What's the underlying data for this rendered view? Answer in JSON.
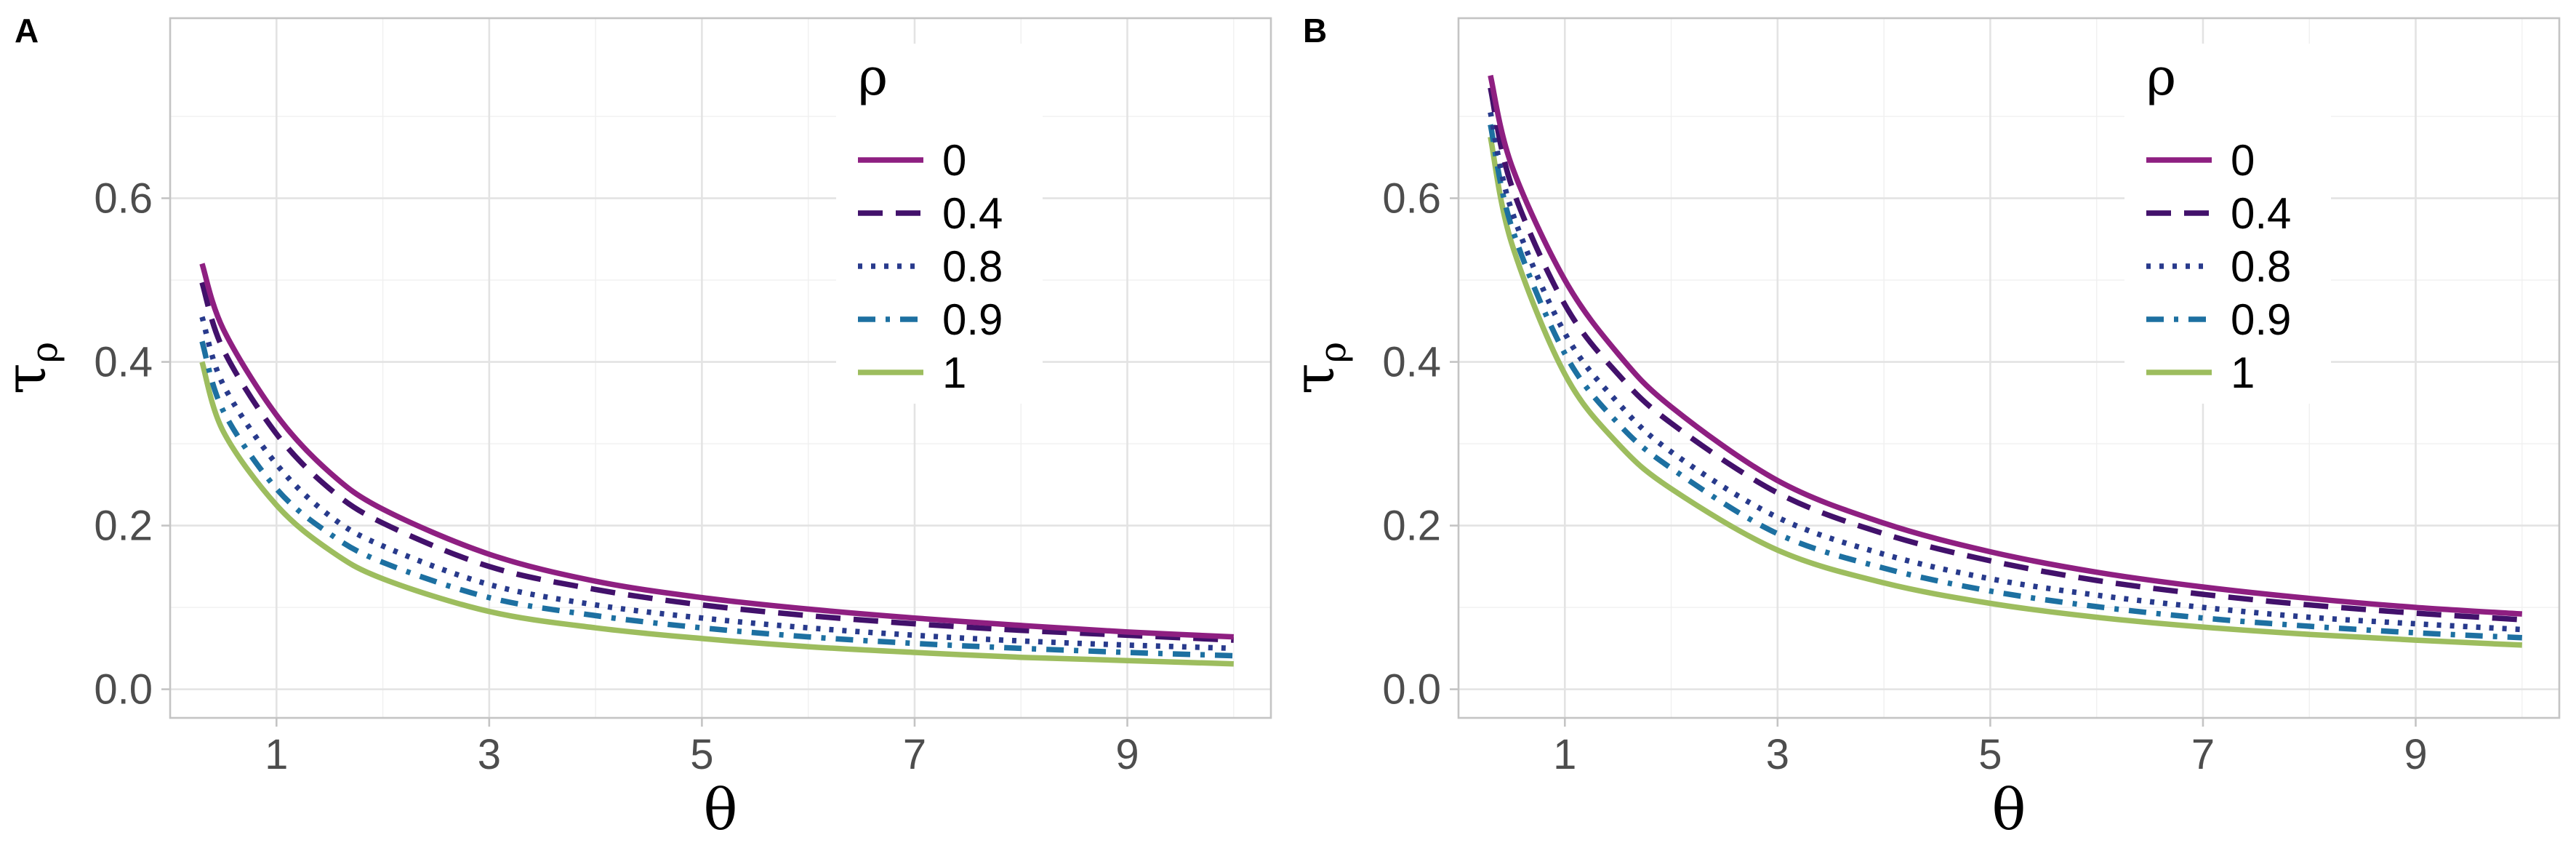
{
  "chart_data": [
    {
      "panel": "A",
      "type": "line",
      "xlabel": "θ",
      "ylabel": "τ",
      "ylabel_subscript": "ρ",
      "xlim": [
        0.0,
        10.35
      ],
      "ylim": [
        -0.035,
        0.82
      ],
      "x_ticks": [
        1,
        3,
        5,
        7,
        9
      ],
      "y_ticks": [
        0.0,
        0.2,
        0.4,
        0.6
      ],
      "x_tick_labels": [
        "1",
        "3",
        "5",
        "7",
        "9"
      ],
      "y_tick_labels": [
        "0.0",
        "0.2",
        "0.4",
        "0.6"
      ],
      "legend": {
        "title": "ρ",
        "position": "top-right-inside"
      },
      "series": [
        {
          "name": "0",
          "color": "#8e1f81",
          "dash": "solid",
          "x": [
            0.3,
            0.5,
            1,
            1.5,
            2,
            3,
            4,
            5,
            6,
            7,
            8,
            9,
            10
          ],
          "y": [
            0.52,
            0.44,
            0.335,
            0.265,
            0.22,
            0.165,
            0.132,
            0.112,
            0.098,
            0.087,
            0.078,
            0.07,
            0.064
          ]
        },
        {
          "name": "0.4",
          "color": "#42116b",
          "dash": "dashed",
          "x": [
            0.3,
            0.5,
            1,
            1.5,
            2,
            3,
            4,
            5,
            6,
            7,
            8,
            9,
            10
          ],
          "y": [
            0.497,
            0.415,
            0.312,
            0.245,
            0.203,
            0.15,
            0.122,
            0.103,
            0.09,
            0.08,
            0.072,
            0.066,
            0.06
          ]
        },
        {
          "name": "0.8",
          "color": "#283a8c",
          "dash": "dotted",
          "x": [
            0.3,
            0.5,
            1,
            1.5,
            2,
            3,
            4,
            5,
            6,
            7,
            8,
            9,
            10
          ],
          "y": [
            0.455,
            0.372,
            0.275,
            0.212,
            0.175,
            0.128,
            0.103,
            0.087,
            0.075,
            0.066,
            0.059,
            0.054,
            0.05
          ]
        },
        {
          "name": "0.9",
          "color": "#1d70a1",
          "dash": "dotdash",
          "x": [
            0.3,
            0.5,
            1,
            1.5,
            2,
            3,
            4,
            5,
            6,
            7,
            8,
            9,
            10
          ],
          "y": [
            0.425,
            0.34,
            0.245,
            0.19,
            0.155,
            0.112,
            0.09,
            0.075,
            0.064,
            0.056,
            0.05,
            0.045,
            0.041
          ]
        },
        {
          "name": "1",
          "color": "#9dbd5e",
          "dash": "solid",
          "x": [
            0.3,
            0.5,
            1,
            1.5,
            2,
            3,
            4,
            5,
            6,
            7,
            8,
            9,
            10
          ],
          "y": [
            0.4,
            0.315,
            0.225,
            0.17,
            0.135,
            0.095,
            0.075,
            0.062,
            0.052,
            0.045,
            0.039,
            0.035,
            0.031
          ]
        }
      ]
    },
    {
      "panel": "B",
      "type": "line",
      "xlabel": "θ",
      "ylabel": "τ",
      "ylabel_subscript": "ρ",
      "xlim": [
        0.0,
        10.35
      ],
      "ylim": [
        -0.035,
        0.82
      ],
      "x_ticks": [
        1,
        3,
        5,
        7,
        9
      ],
      "y_ticks": [
        0.0,
        0.2,
        0.4,
        0.6
      ],
      "x_tick_labels": [
        "1",
        "3",
        "5",
        "7",
        "9"
      ],
      "y_tick_labels": [
        "0.0",
        "0.2",
        "0.4",
        "0.6"
      ],
      "legend": {
        "title": "ρ",
        "position": "top-right-inside"
      },
      "series": [
        {
          "name": "0",
          "color": "#8e1f81",
          "dash": "solid",
          "x": [
            0.3,
            0.5,
            1,
            1.5,
            2,
            3,
            4,
            5,
            6,
            7,
            8,
            9,
            10
          ],
          "y": [
            0.75,
            0.64,
            0.5,
            0.41,
            0.345,
            0.255,
            0.203,
            0.168,
            0.143,
            0.125,
            0.111,
            0.1,
            0.092
          ]
        },
        {
          "name": "0.4",
          "color": "#42116b",
          "dash": "dashed",
          "x": [
            0.3,
            0.5,
            1,
            1.5,
            2,
            3,
            4,
            5,
            6,
            7,
            8,
            9,
            10
          ],
          "y": [
            0.735,
            0.615,
            0.47,
            0.385,
            0.325,
            0.24,
            0.19,
            0.157,
            0.133,
            0.116,
            0.103,
            0.093,
            0.085
          ]
        },
        {
          "name": "0.8",
          "color": "#283a8c",
          "dash": "dotted",
          "x": [
            0.3,
            0.5,
            1,
            1.5,
            2,
            3,
            4,
            5,
            6,
            7,
            8,
            9,
            10
          ],
          "y": [
            0.705,
            0.585,
            0.435,
            0.35,
            0.29,
            0.21,
            0.165,
            0.135,
            0.115,
            0.1,
            0.088,
            0.08,
            0.073
          ]
        },
        {
          "name": "0.9",
          "color": "#1d70a1",
          "dash": "dotdash",
          "x": [
            0.3,
            0.5,
            1,
            1.5,
            2,
            3,
            4,
            5,
            6,
            7,
            8,
            9,
            10
          ],
          "y": [
            0.69,
            0.565,
            0.41,
            0.325,
            0.27,
            0.19,
            0.148,
            0.12,
            0.101,
            0.087,
            0.077,
            0.069,
            0.063
          ]
        },
        {
          "name": "1",
          "color": "#9dbd5e",
          "dash": "solid",
          "x": [
            0.3,
            0.5,
            1,
            1.5,
            2,
            3,
            4,
            5,
            6,
            7,
            8,
            9,
            10
          ],
          "y": [
            0.675,
            0.545,
            0.385,
            0.3,
            0.245,
            0.17,
            0.13,
            0.105,
            0.088,
            0.076,
            0.067,
            0.06,
            0.054
          ]
        }
      ]
    }
  ]
}
